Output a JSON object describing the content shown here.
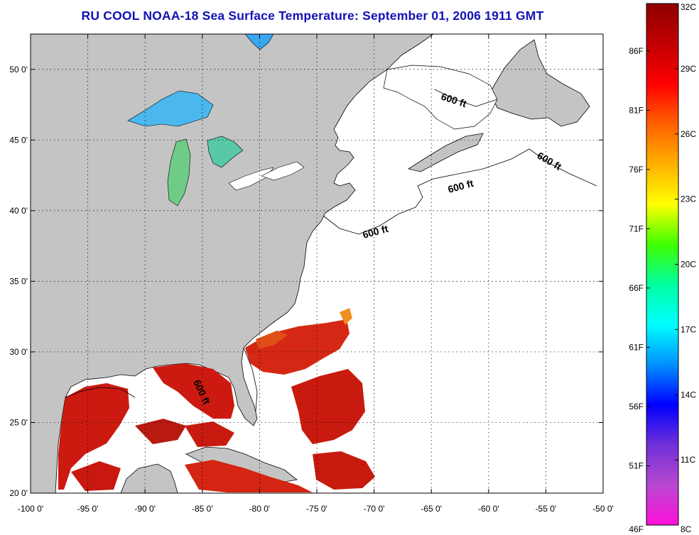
{
  "title": "RU COOL  NOAA-18  Sea Surface Temperature:  September 01, 2006 1911 GMT",
  "map": {
    "lon_range": [
      -100,
      -50
    ],
    "lat_range": [
      20,
      52.5
    ],
    "lat_ticks": [
      {
        "value": 50,
        "label": "50 0'"
      },
      {
        "value": 45,
        "label": "45 0'"
      },
      {
        "value": 40,
        "label": "40 0'"
      },
      {
        "value": 35,
        "label": "35 0'"
      },
      {
        "value": 30,
        "label": "30 0'"
      },
      {
        "value": 25,
        "label": "25 0'"
      },
      {
        "value": 20,
        "label": "20 0'"
      }
    ],
    "lon_ticks": [
      {
        "value": -100,
        "label": "-100 0'"
      },
      {
        "value": -95,
        "label": "-95 0'"
      },
      {
        "value": -90,
        "label": "-90 0'"
      },
      {
        "value": -85,
        "label": "-85 0'"
      },
      {
        "value": -80,
        "label": "-80 0'"
      },
      {
        "value": -75,
        "label": "-75 0'"
      },
      {
        "value": -70,
        "label": "-70 0'"
      },
      {
        "value": -65,
        "label": "-65 0'"
      },
      {
        "value": -60,
        "label": "-60 0'"
      },
      {
        "value": -55,
        "label": "-55 0'"
      },
      {
        "value": -50,
        "label": "-50 0'"
      }
    ],
    "contour_labels": [
      "600 ft",
      "600 ft",
      "600 ft",
      "600 ft",
      "600 ft"
    ],
    "colors": {
      "land": "#c4c4c4",
      "ocean": "#ffffff",
      "grid": "#000000",
      "sst_warm": "#cc1a10",
      "sst_cool": "#33c8f0"
    }
  },
  "colorbar": {
    "celsius_ticks": [
      "32C",
      "29C",
      "26C",
      "23C",
      "20C",
      "17C",
      "14C",
      "11C",
      "8C"
    ],
    "fahrenheit_ticks": [
      "86F",
      "81F",
      "76F",
      "71F",
      "66F",
      "61F",
      "56F",
      "51F",
      "46F"
    ],
    "celsius_range": [
      8,
      32
    ],
    "fahrenheit_range": [
      46,
      90
    ],
    "stops": [
      "#ff10d8",
      "#b848d0",
      "#7030d8",
      "#0000ff",
      "#0090ff",
      "#00ffff",
      "#00ffa0",
      "#40ff00",
      "#ffff00",
      "#ffb000",
      "#ff6000",
      "#ff0000",
      "#c00000",
      "#900000"
    ]
  }
}
